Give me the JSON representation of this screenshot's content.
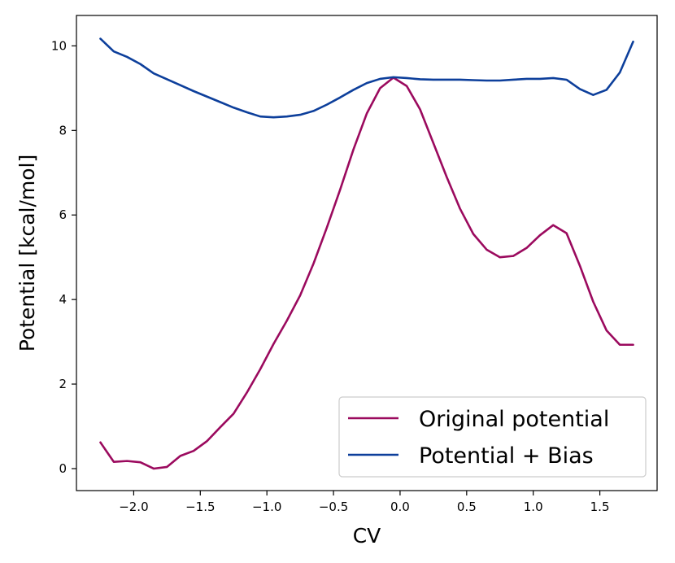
{
  "chart_data": {
    "type": "line",
    "xlabel": "CV",
    "ylabel": "Potential [kcal/mol]",
    "xlim": [
      -2.43,
      1.93
    ],
    "ylim": [
      -0.52,
      10.72
    ],
    "xticks": [
      -2.0,
      -1.5,
      -1.0,
      -0.5,
      0.0,
      0.5,
      1.0,
      1.5
    ],
    "xtick_labels": [
      "−2.0",
      "−1.5",
      "−1.0",
      "−0.5",
      "0.0",
      "0.5",
      "1.0",
      "1.5"
    ],
    "yticks": [
      0,
      2,
      4,
      6,
      8,
      10
    ],
    "ytick_labels": [
      "0",
      "2",
      "4",
      "6",
      "8",
      "10"
    ],
    "grid": false,
    "legend": "lower-right",
    "series": [
      {
        "name": "Original potential",
        "color": "#9b0a5e",
        "x": [
          -2.25,
          -2.15,
          -2.05,
          -1.95,
          -1.85,
          -1.75,
          -1.65,
          -1.55,
          -1.45,
          -1.35,
          -1.25,
          -1.15,
          -1.05,
          -0.95,
          -0.85,
          -0.75,
          -0.65,
          -0.55,
          -0.45,
          -0.35,
          -0.25,
          -0.15,
          -0.05,
          0.05,
          0.15,
          0.25,
          0.35,
          0.45,
          0.55,
          0.65,
          0.75,
          0.85,
          0.95,
          1.05,
          1.15,
          1.25,
          1.35,
          1.45,
          1.55,
          1.65,
          1.75
        ],
        "y": [
          0.62,
          0.16,
          0.18,
          0.15,
          0.0,
          0.04,
          0.3,
          0.42,
          0.65,
          0.98,
          1.3,
          1.8,
          2.35,
          2.95,
          3.5,
          4.1,
          4.85,
          5.7,
          6.6,
          7.55,
          8.4,
          9.0,
          9.25,
          9.05,
          8.5,
          7.7,
          6.9,
          6.15,
          5.55,
          5.18,
          5.0,
          5.03,
          5.22,
          5.52,
          5.76,
          5.57,
          4.8,
          3.95,
          3.27,
          2.93,
          2.93
        ]
      },
      {
        "name": "Potential + Bias",
        "color": "#0d3f9b",
        "x": [
          -2.25,
          -2.15,
          -2.05,
          -1.95,
          -1.85,
          -1.75,
          -1.65,
          -1.55,
          -1.45,
          -1.35,
          -1.25,
          -1.15,
          -1.05,
          -0.95,
          -0.85,
          -0.75,
          -0.65,
          -0.55,
          -0.45,
          -0.35,
          -0.25,
          -0.15,
          -0.05,
          0.05,
          0.15,
          0.25,
          0.35,
          0.45,
          0.55,
          0.65,
          0.75,
          0.85,
          0.95,
          1.05,
          1.15,
          1.25,
          1.35,
          1.45,
          1.55,
          1.65,
          1.75
        ],
        "y": [
          10.17,
          9.87,
          9.74,
          9.57,
          9.35,
          9.21,
          9.07,
          8.93,
          8.8,
          8.67,
          8.54,
          8.43,
          8.33,
          8.31,
          8.33,
          8.37,
          8.46,
          8.61,
          8.78,
          8.96,
          9.12,
          9.22,
          9.26,
          9.24,
          9.21,
          9.2,
          9.2,
          9.2,
          9.19,
          9.18,
          9.18,
          9.2,
          9.22,
          9.22,
          9.24,
          9.2,
          8.98,
          8.84,
          8.96,
          9.37,
          10.1
        ]
      }
    ]
  }
}
